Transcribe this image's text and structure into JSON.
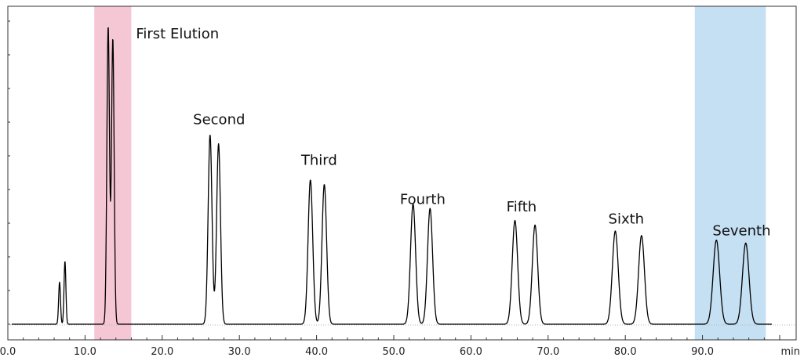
{
  "chart_data": {
    "type": "line",
    "x_unit": "min",
    "xlim": [
      0,
      100
    ],
    "x_ticks": [
      "0.0",
      "10.0",
      "20.0",
      "30.0",
      "40.0",
      "50.0",
      "60.0",
      "70.0",
      "80.0",
      "90.0"
    ],
    "y_tick_count": 10,
    "grid": false,
    "highlight_regions": [
      {
        "x_start": 11.2,
        "x_end": 16.0,
        "color": "#f5c6d3"
      },
      {
        "x_start": 89.0,
        "x_end": 98.2,
        "color": "#c5e0f3"
      }
    ],
    "peak_labels": [
      {
        "text": "First Elution",
        "x": 16.6,
        "y": 0.95
      },
      {
        "text": "Second",
        "x": 24.0,
        "y": 0.665
      },
      {
        "text": "Third",
        "x": 38.0,
        "y": 0.53
      },
      {
        "text": "Fourth",
        "x": 50.8,
        "y": 0.4
      },
      {
        "text": "Fifth",
        "x": 64.6,
        "y": 0.375
      },
      {
        "text": "Sixth",
        "x": 77.8,
        "y": 0.335
      },
      {
        "text": "Seventh",
        "x": 91.3,
        "y": 0.295
      }
    ],
    "series": [
      {
        "color": "#000000",
        "baseline": 0,
        "peaks": [
          {
            "x": 6.7,
            "height": 0.14,
            "width": 0.12
          },
          {
            "x": 7.4,
            "height": 0.21,
            "width": 0.12
          },
          {
            "x": 13.0,
            "height": 0.99,
            "width": 0.17
          },
          {
            "x": 13.6,
            "height": 0.95,
            "width": 0.17
          },
          {
            "x": 26.2,
            "height": 0.63,
            "width": 0.25
          },
          {
            "x": 27.3,
            "height": 0.6,
            "width": 0.25
          },
          {
            "x": 39.2,
            "height": 0.48,
            "width": 0.3
          },
          {
            "x": 41.0,
            "height": 0.465,
            "width": 0.3
          },
          {
            "x": 52.5,
            "height": 0.4,
            "width": 0.33
          },
          {
            "x": 54.7,
            "height": 0.385,
            "width": 0.33
          },
          {
            "x": 65.7,
            "height": 0.345,
            "width": 0.35
          },
          {
            "x": 68.3,
            "height": 0.33,
            "width": 0.35
          },
          {
            "x": 78.7,
            "height": 0.31,
            "width": 0.38
          },
          {
            "x": 82.1,
            "height": 0.295,
            "width": 0.38
          },
          {
            "x": 91.8,
            "height": 0.28,
            "width": 0.42
          },
          {
            "x": 95.6,
            "height": 0.27,
            "width": 0.42
          }
        ]
      }
    ]
  }
}
